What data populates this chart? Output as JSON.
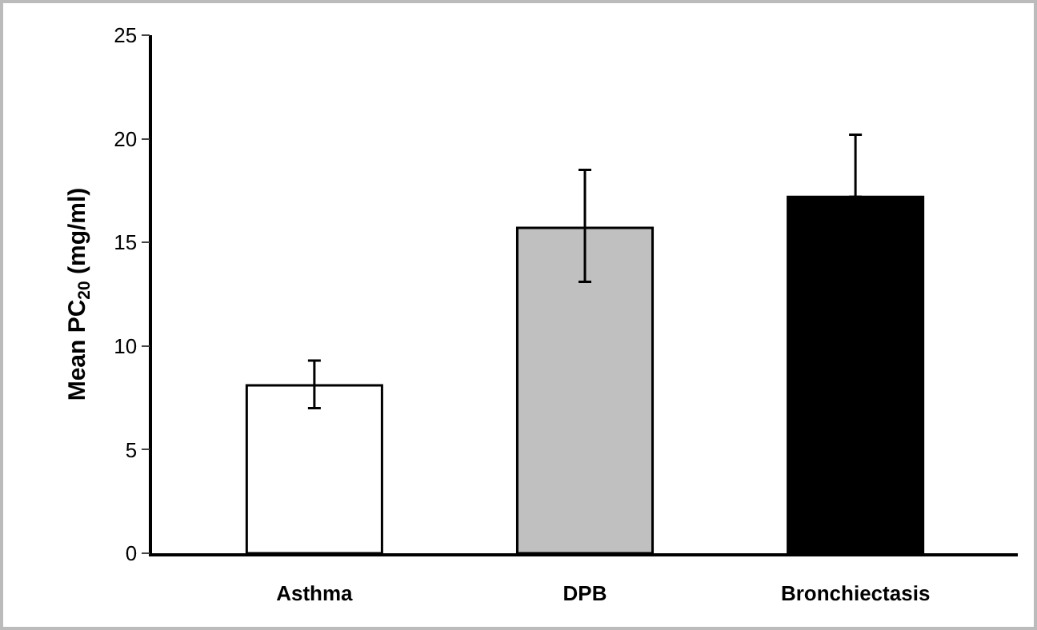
{
  "chart_data": {
    "type": "bar",
    "ylabel": "Mean PC$_{20}$ (mg/ml)",
    "categories": [
      "Asthma",
      "DPB",
      "Bronchiectasis"
    ],
    "values": [
      8.1,
      15.7,
      17.2
    ],
    "colors": [
      "#ffffff",
      "#c0c0c0",
      "#000000"
    ],
    "errors": [
      [
        7.0,
        9.3
      ],
      [
        13.1,
        18.5
      ],
      [
        17.2,
        20.2
      ]
    ],
    "ylim": [
      0,
      25
    ],
    "yticks": [
      0,
      5,
      10,
      15,
      20,
      25
    ],
    "grid": false
  }
}
